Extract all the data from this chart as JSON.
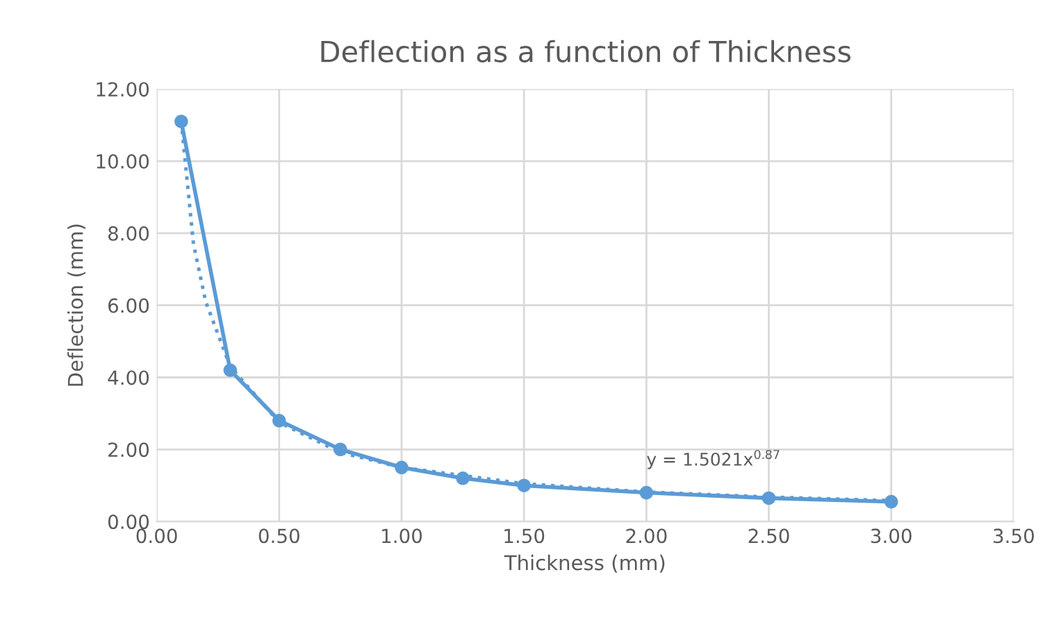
{
  "chart_data": {
    "type": "line",
    "title": "Deflection as a function of Thickness",
    "xlabel": "Thickness (mm)",
    "ylabel": "Deflection (mm)",
    "x": [
      0.1,
      0.3,
      0.5,
      0.75,
      1.0,
      1.25,
      1.5,
      2.0,
      2.5,
      3.0
    ],
    "series": [
      {
        "color": "#5b9bd5",
        "marker": "circle",
        "line_style": "solid",
        "values": [
          11.1,
          4.2,
          2.8,
          2.0,
          1.5,
          1.2,
          1.0,
          0.8,
          0.65,
          0.55
        ]
      },
      {
        "color": "#5b9bd5",
        "marker": "none",
        "line_style": "dotted",
        "x": [
          0.1,
          0.15,
          0.2,
          0.3,
          0.5,
          0.75,
          1.0,
          1.5,
          2.0,
          2.5,
          3.0
        ],
        "values": [
          11.1,
          7.7,
          6.1,
          4.3,
          2.75,
          1.92,
          1.5,
          1.05,
          0.82,
          0.68,
          0.58
        ]
      }
    ],
    "annotations": [
      "y = 1.5021x$^{0.87}$"
    ],
    "xlim": [
      0,
      3.5
    ],
    "xticks": [
      {
        "value": 0,
        "label": "0.00"
      },
      {
        "value": 0.5,
        "label": "0.50"
      },
      {
        "value": 1,
        "label": "1.00"
      },
      {
        "value": 1.5,
        "label": "1.50"
      },
      {
        "value": 2,
        "label": "2.00"
      },
      {
        "value": 2.5,
        "label": "2.50"
      },
      {
        "value": 3,
        "label": "3.00"
      },
      {
        "value": 3.5,
        "label": "3.50"
      }
    ],
    "ylim": [
      0,
      12
    ],
    "yticks": [
      {
        "value": 0,
        "label": "0.00"
      },
      {
        "value": 2,
        "label": "2.00"
      },
      {
        "value": 4,
        "label": "4.00"
      },
      {
        "value": 6,
        "label": "6.00"
      },
      {
        "value": 8,
        "label": "8.00"
      },
      {
        "value": 10,
        "label": "10.00"
      },
      {
        "value": 12,
        "label": "12.00"
      }
    ],
    "grid": true,
    "legend": false
  }
}
